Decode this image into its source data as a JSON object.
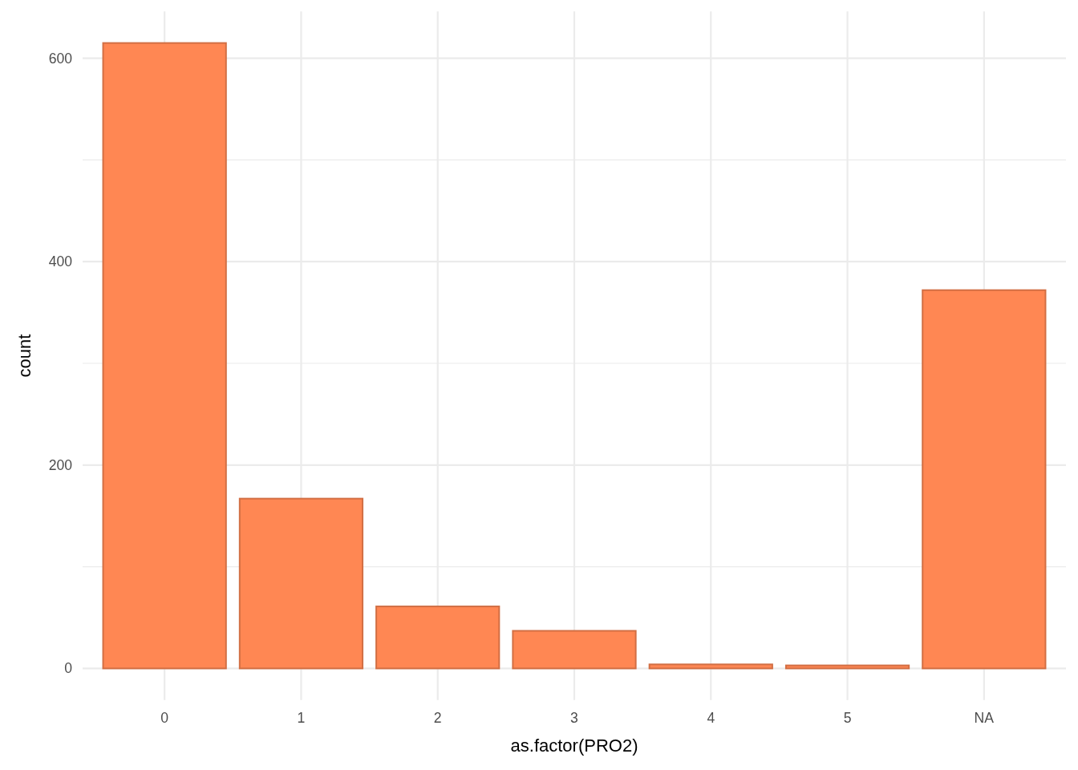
{
  "chart_data": {
    "type": "bar",
    "xlabel": "as.factor(PRO2)",
    "ylabel": "count",
    "categories": [
      "0",
      "1",
      "2",
      "3",
      "4",
      "5",
      "NA"
    ],
    "values": [
      615,
      167,
      61,
      37,
      4,
      3,
      372
    ],
    "color": "#ff8753",
    "ylim": [
      -31,
      646
    ],
    "yticks": [
      0,
      {
        "value": 100,
        "label": null
      },
      200,
      {
        "value": 300,
        "label": null
      },
      400,
      {
        "value": 500,
        "label": null
      },
      600
    ],
    "grid": true
  }
}
